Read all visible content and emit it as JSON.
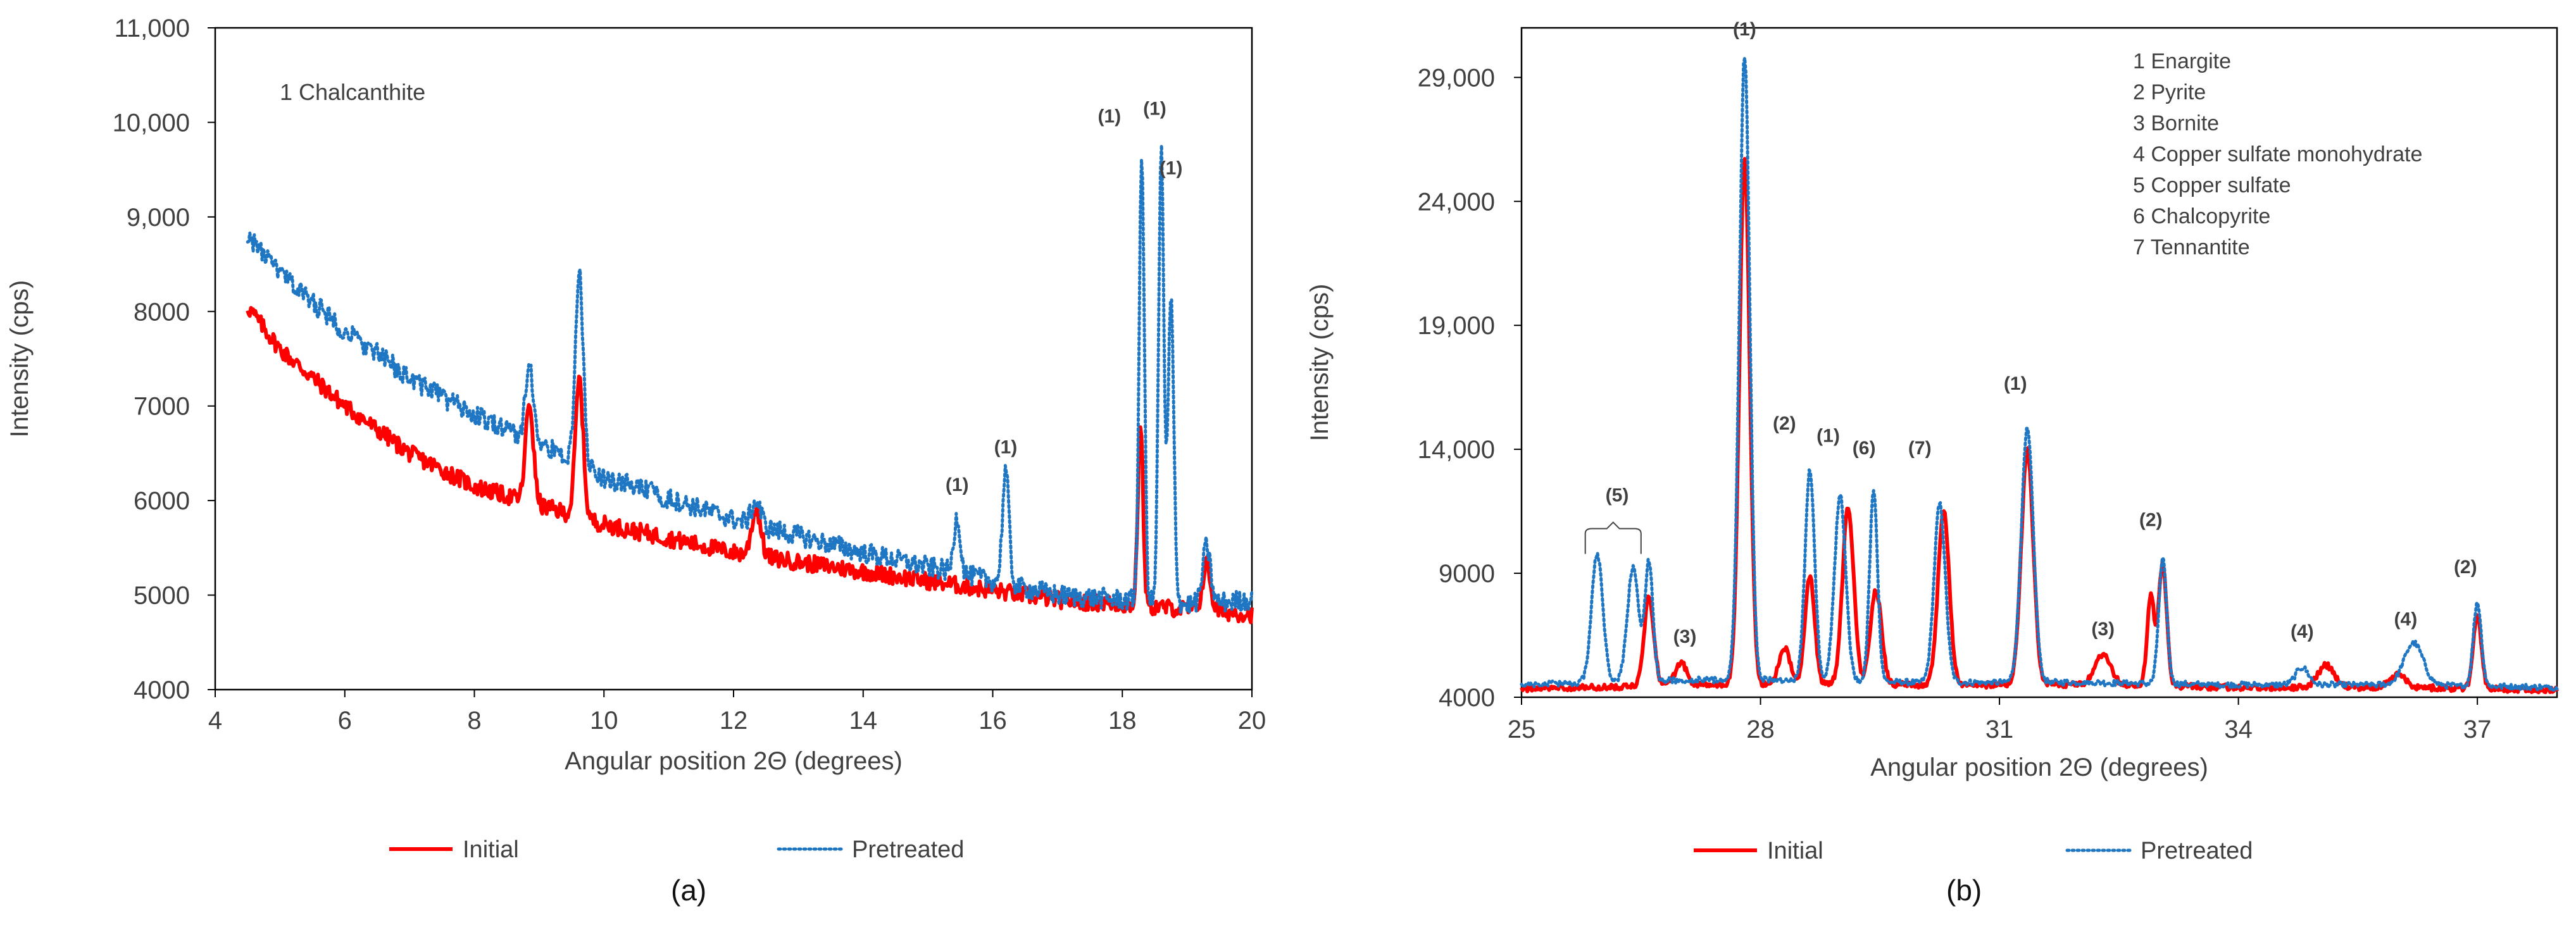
{
  "chart_data": [
    {
      "panel": "(a)",
      "type": "line",
      "title": "",
      "xlabel": "Angular position  2Θ (degrees)",
      "ylabel": "Intensity (cps)",
      "xlim": [
        4,
        20
      ],
      "ylim": [
        4000,
        11000
      ],
      "xticks": [
        4,
        6,
        8,
        10,
        12,
        14,
        16,
        18,
        20
      ],
      "yticks": [
        4000,
        5000,
        6000,
        7000,
        8000,
        9000,
        10000,
        11000
      ],
      "ytick_labels": [
        "4000",
        "5000",
        "6000",
        "7000",
        "8000",
        "9,000",
        "10,000",
        "11,000"
      ],
      "legend_title_text": "1 Chalcanthite",
      "legend_position": "bottom",
      "series": [
        {
          "name": "Initial",
          "color": "#ff0000",
          "style": "solid",
          "baseline": [
            [
              4.5,
              8050
            ],
            [
              5,
              7600
            ],
            [
              6,
              7000
            ],
            [
              7,
              6500
            ],
            [
              8,
              6150
            ],
            [
              9,
              5950
            ],
            [
              10,
              5750
            ],
            [
              12,
              5450
            ],
            [
              14,
              5250
            ],
            [
              16,
              5050
            ],
            [
              17,
              4950
            ],
            [
              18,
              4900
            ],
            [
              19,
              4850
            ],
            [
              20,
              4800
            ]
          ],
          "peaks": [
            [
              8.85,
              1050,
              0.06
            ],
            [
              9.62,
              1450,
              0.06
            ],
            [
              12.35,
              500,
              0.07
            ],
            [
              18.28,
              1950,
              0.04
            ],
            [
              19.3,
              500,
              0.06
            ]
          ],
          "noise": 90
        },
        {
          "name": "Pretreated",
          "color": "#1f77c4",
          "style": "dotted",
          "baseline": [
            [
              4.5,
              8800
            ],
            [
              5,
              8400
            ],
            [
              6,
              7800
            ],
            [
              7,
              7300
            ],
            [
              8,
              6900
            ],
            [
              9,
              6600
            ],
            [
              10,
              6250
            ],
            [
              12,
              5800
            ],
            [
              14,
              5450
            ],
            [
              16,
              5150
            ],
            [
              17,
              5000
            ],
            [
              18,
              4950
            ],
            [
              19,
              4900
            ],
            [
              20,
              4950
            ]
          ],
          "peaks": [
            [
              8.85,
              800,
              0.06
            ],
            [
              9.62,
              2000,
              0.06
            ],
            [
              12.35,
              250,
              0.07
            ],
            [
              15.45,
              600,
              0.05
            ],
            [
              16.2,
              1200,
              0.05
            ],
            [
              18.3,
              4700,
              0.04
            ],
            [
              18.6,
              4800,
              0.04
            ],
            [
              18.75,
              3200,
              0.045
            ],
            [
              19.3,
              600,
              0.06
            ]
          ],
          "noise": 110
        }
      ],
      "annotations": [
        {
          "text": "(1)",
          "x": 15.45,
          "y": 6100
        },
        {
          "text": "(1)",
          "x": 16.2,
          "y": 6500
        },
        {
          "text": "(1)",
          "x": 17.8,
          "y": 10000
        },
        {
          "text": "(1)",
          "x": 18.5,
          "y": 10080
        },
        {
          "text": "(1)",
          "x": 18.75,
          "y": 9450
        }
      ]
    },
    {
      "panel": "(b)",
      "type": "line",
      "title": "",
      "xlabel": "Angular position 2Θ (degrees)",
      "ylabel": "Intensity (cps)",
      "xlim": [
        25,
        38
      ],
      "ylim": [
        4000,
        31000
      ],
      "xticks": [
        25,
        28,
        31,
        34,
        37
      ],
      "yticks": [
        4000,
        9000,
        14000,
        19000,
        24000,
        29000
      ],
      "ytick_labels": [
        "4000",
        "9000",
        "14,000",
        "19,000",
        "24,000",
        "29,000"
      ],
      "legend_title_lines": [
        "1 Enargite",
        "2 Pyrite",
        "3 Bornite",
        "4 Copper sulfate monohydrate",
        "5 Copper sulfate",
        "6 Chalcopyrite",
        "7 Tennantite"
      ],
      "legend_position": "bottom",
      "series": [
        {
          "name": "Initial",
          "color": "#ff0000",
          "style": "solid",
          "baseline": [
            [
              25,
              4350
            ],
            [
              26,
              4400
            ],
            [
              27,
              4500
            ],
            [
              28,
              4500
            ],
            [
              30,
              4500
            ],
            [
              32,
              4500
            ],
            [
              34,
              4400
            ],
            [
              36,
              4400
            ],
            [
              38,
              4300
            ]
          ],
          "peaks": [
            [
              26.6,
              3600,
              0.06
            ],
            [
              27.0,
              900,
              0.07
            ],
            [
              27.8,
              21300,
              0.065
            ],
            [
              28.3,
              1500,
              0.07
            ],
            [
              28.62,
              4400,
              0.06
            ],
            [
              29.1,
              7200,
              0.07
            ],
            [
              29.45,
              3800,
              0.07
            ],
            [
              30.3,
              7000,
              0.07
            ],
            [
              31.35,
              9500,
              0.075
            ],
            [
              32.3,
              1200,
              0.1
            ],
            [
              32.9,
              3600,
              0.045
            ],
            [
              33.05,
              5000,
              0.05
            ],
            [
              35.1,
              900,
              0.1
            ],
            [
              36.0,
              500,
              0.1
            ],
            [
              37.0,
              3000,
              0.05
            ]
          ],
          "noise": 120
        },
        {
          "name": "Pretreated",
          "color": "#1f77c4",
          "style": "dotted",
          "baseline": [
            [
              25,
              4500
            ],
            [
              26,
              4600
            ],
            [
              27,
              4700
            ],
            [
              28,
              4700
            ],
            [
              30,
              4600
            ],
            [
              32,
              4600
            ],
            [
              34,
              4500
            ],
            [
              36,
              4500
            ],
            [
              38,
              4400
            ]
          ],
          "peaks": [
            [
              25.95,
              5200,
              0.07
            ],
            [
              26.4,
              4600,
              0.07
            ],
            [
              26.6,
              4800,
              0.05
            ],
            [
              27.8,
              25200,
              0.065
            ],
            [
              28.62,
              8500,
              0.06
            ],
            [
              29.0,
              7500,
              0.07
            ],
            [
              29.42,
              7700,
              0.05
            ],
            [
              30.25,
              7200,
              0.07
            ],
            [
              31.35,
              10200,
              0.075
            ],
            [
              33.05,
              5000,
              0.05
            ],
            [
              34.8,
              700,
              0.08
            ],
            [
              36.2,
              1700,
              0.12
            ],
            [
              37.0,
              3400,
              0.05
            ]
          ],
          "noise": 120
        }
      ],
      "annotations": [
        {
          "text": "(5)",
          "x": 26.2,
          "y": 11900
        },
        {
          "text": "(3)",
          "x": 27.05,
          "y": 6200
        },
        {
          "text": "(1)",
          "x": 27.8,
          "y": 30700
        },
        {
          "text": "(2)",
          "x": 28.3,
          "y": 14800
        },
        {
          "text": "(1)",
          "x": 28.85,
          "y": 14300
        },
        {
          "text": "(6)",
          "x": 29.3,
          "y": 13800
        },
        {
          "text": "(7)",
          "x": 30.0,
          "y": 13800
        },
        {
          "text": "(1)",
          "x": 31.2,
          "y": 16400
        },
        {
          "text": "(3)",
          "x": 32.3,
          "y": 6500
        },
        {
          "text": "(2)",
          "x": 32.9,
          "y": 10900
        },
        {
          "text": "(4)",
          "x": 34.8,
          "y": 6400
        },
        {
          "text": "(4)",
          "x": 36.1,
          "y": 6900
        },
        {
          "text": "(2)",
          "x": 36.85,
          "y": 9000
        }
      ],
      "bracket": {
        "x1": 25.8,
        "x2": 26.5,
        "y": 10800
      }
    }
  ],
  "captions": {
    "a": "(a)",
    "b": "(b)"
  }
}
